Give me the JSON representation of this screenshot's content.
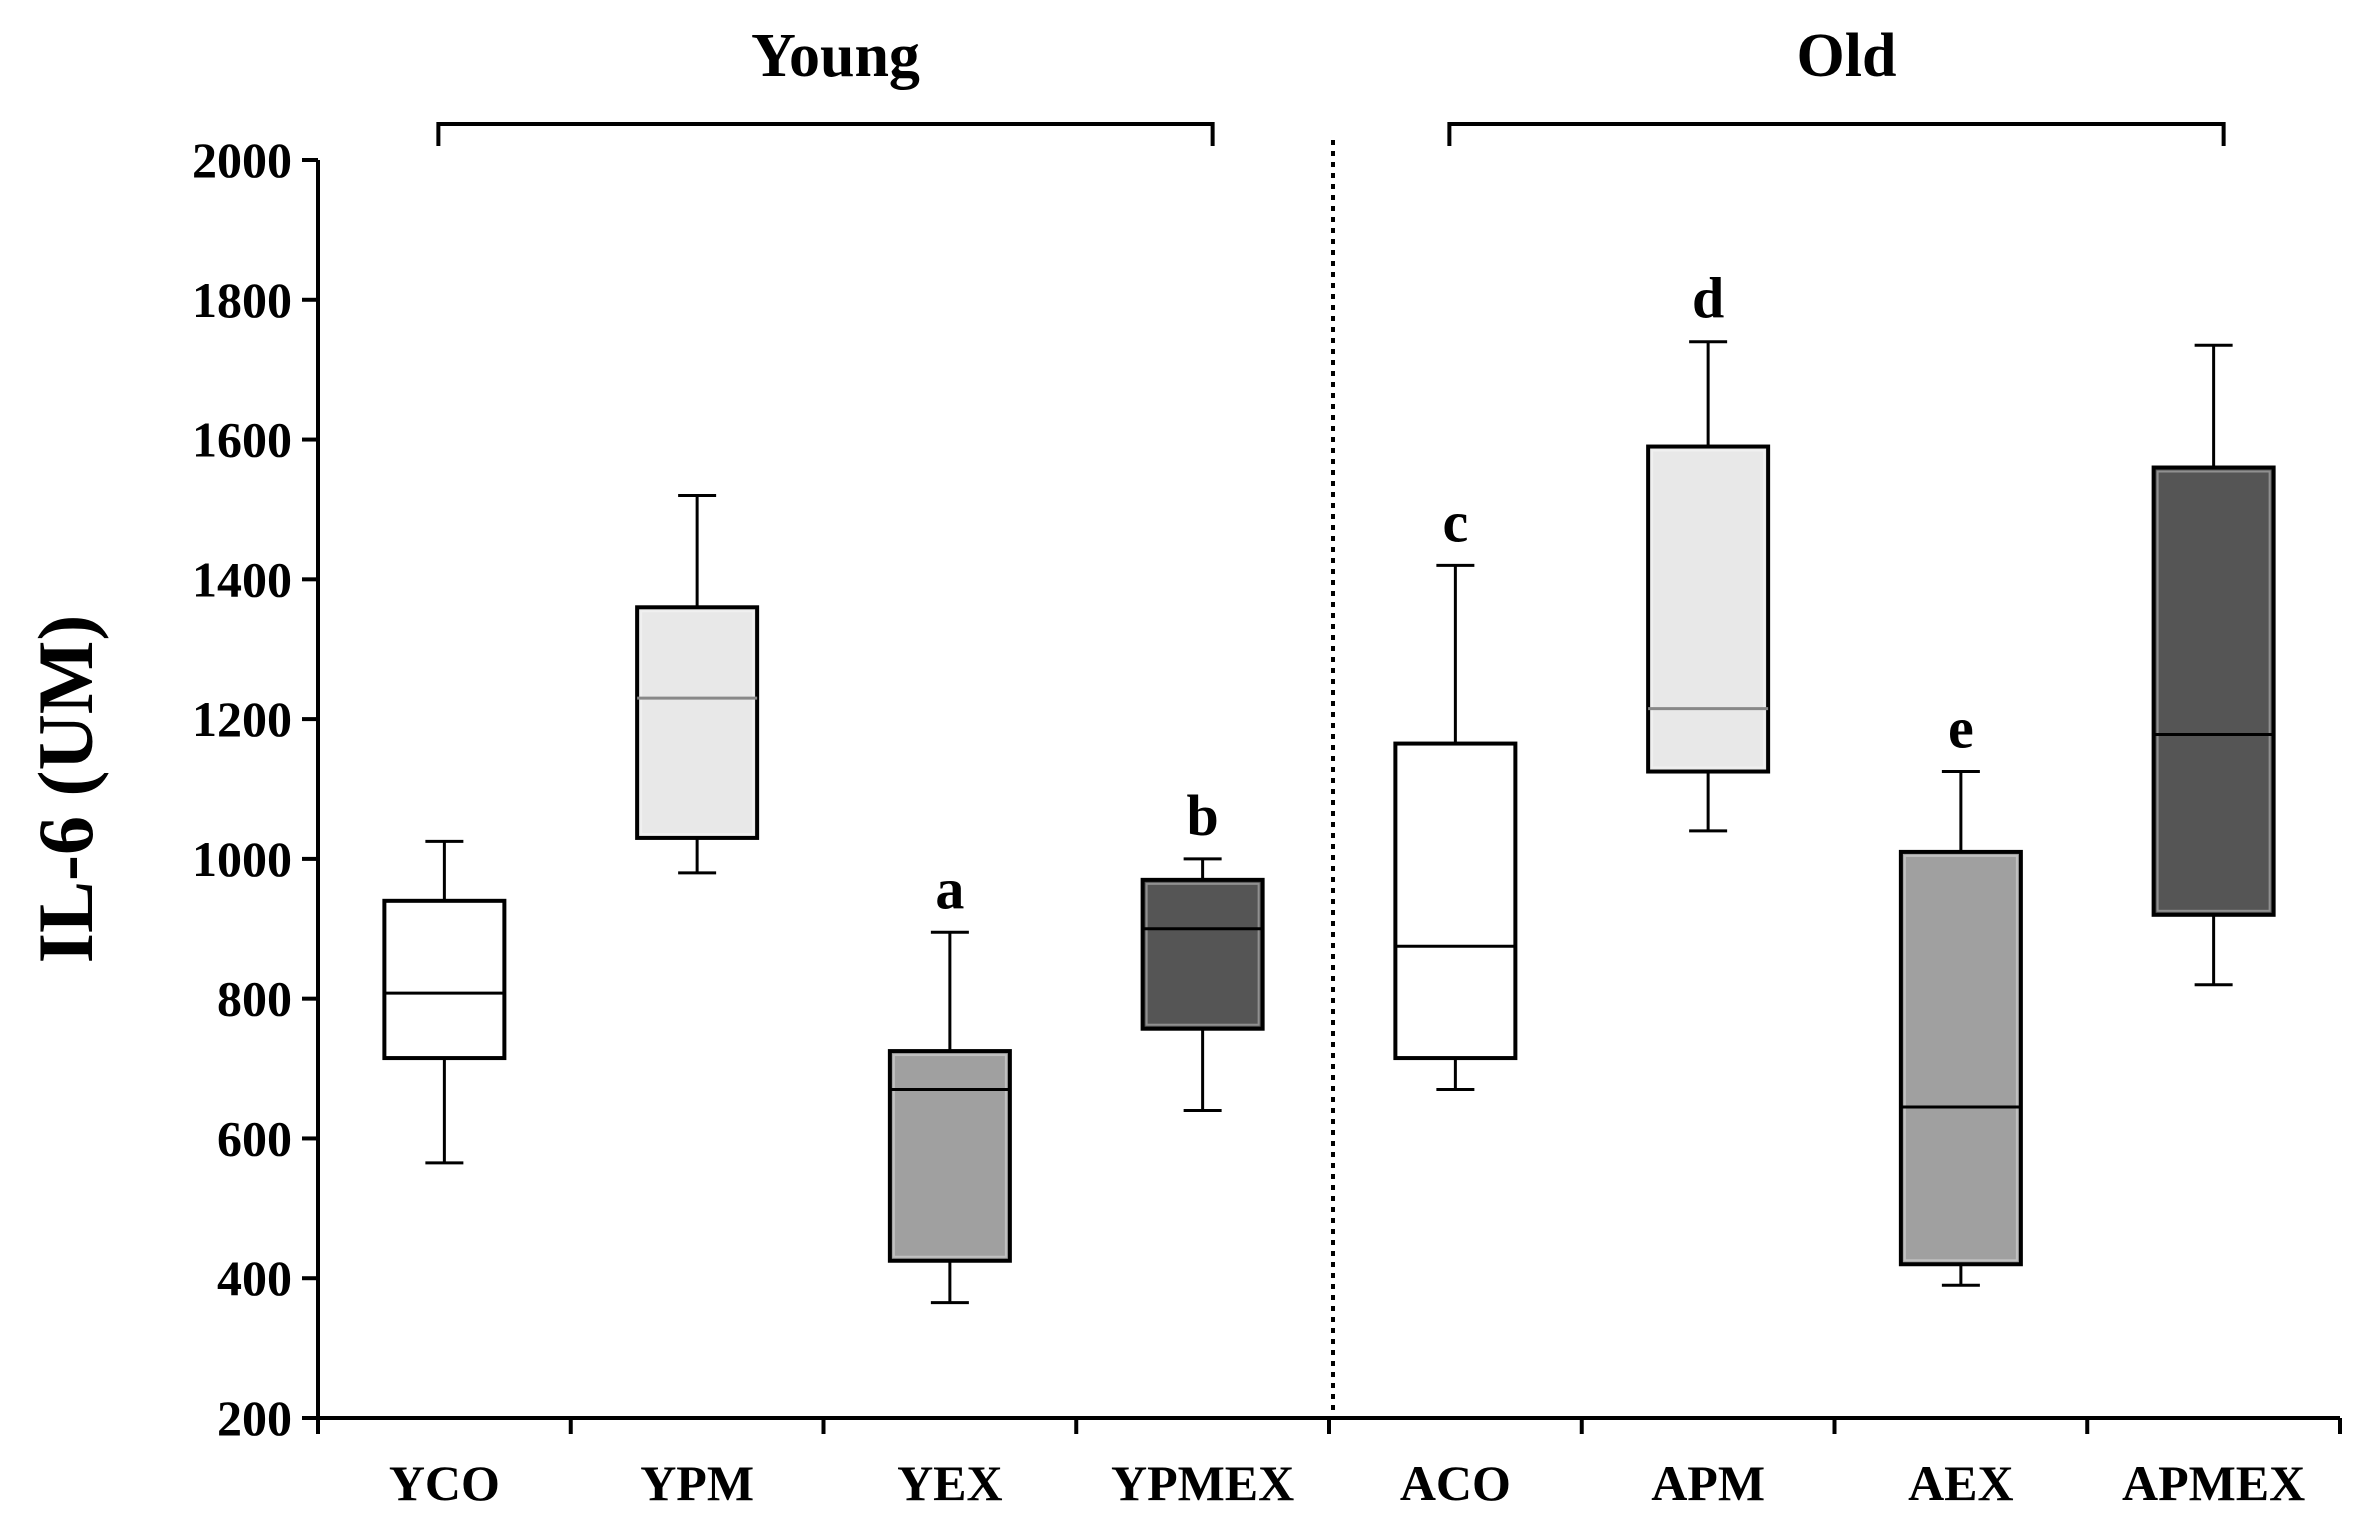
{
  "chart_data": {
    "type": "box",
    "ylabel": "IL-6 (UM)",
    "xlabel": "",
    "ylim": [
      200,
      2000
    ],
    "yticks": [
      200,
      400,
      600,
      800,
      1000,
      1200,
      1400,
      1600,
      1800,
      2000
    ],
    "groups": [
      {
        "label": "Young",
        "categories": [
          "YCO",
          "YPM",
          "YEX",
          "YPMEX"
        ]
      },
      {
        "label": "Old",
        "categories": [
          "ACO",
          "APM",
          "AEX",
          "APMEX"
        ]
      }
    ],
    "boxes": [
      {
        "category": "YCO",
        "whisker_low": 565,
        "q1": 715,
        "median": 808,
        "q3": 940,
        "whisker_high": 1025,
        "color": "#ffffff",
        "median_color": "#000000",
        "annotation": ""
      },
      {
        "category": "YPM",
        "whisker_low": 980,
        "q1": 1030,
        "median": 1230,
        "q3": 1360,
        "whisker_high": 1520,
        "color": "#e8e8e8",
        "median_color": "#888888",
        "annotation": ""
      },
      {
        "category": "YEX",
        "whisker_low": 365,
        "q1": 425,
        "median": 670,
        "q3": 725,
        "whisker_high": 895,
        "color": "#a0a0a0",
        "median_color": "#000000",
        "annotation": "a"
      },
      {
        "category": "YPMEX",
        "whisker_low": 640,
        "q1": 757,
        "median": 900,
        "q3": 970,
        "whisker_high": 1000,
        "color": "#555555",
        "median_color": "#000000",
        "annotation": "b"
      },
      {
        "category": "ACO",
        "whisker_low": 670,
        "q1": 715,
        "median": 875,
        "q3": 1165,
        "whisker_high": 1420,
        "color": "#ffffff",
        "median_color": "#000000",
        "annotation": "c"
      },
      {
        "category": "APM",
        "whisker_low": 1040,
        "q1": 1125,
        "median": 1215,
        "q3": 1590,
        "whisker_high": 1740,
        "color": "#e8e8e8",
        "median_color": "#888888",
        "annotation": "d"
      },
      {
        "category": "AEX",
        "whisker_low": 390,
        "q1": 420,
        "median": 645,
        "q3": 1010,
        "whisker_high": 1125,
        "color": "#a0a0a0",
        "median_color": "#000000",
        "annotation": "e"
      },
      {
        "category": "APMEX",
        "whisker_low": 820,
        "q1": 920,
        "median": 1178,
        "q3": 1560,
        "whisker_high": 1735,
        "color": "#555555",
        "median_color": "#000000",
        "annotation": ""
      }
    ]
  }
}
